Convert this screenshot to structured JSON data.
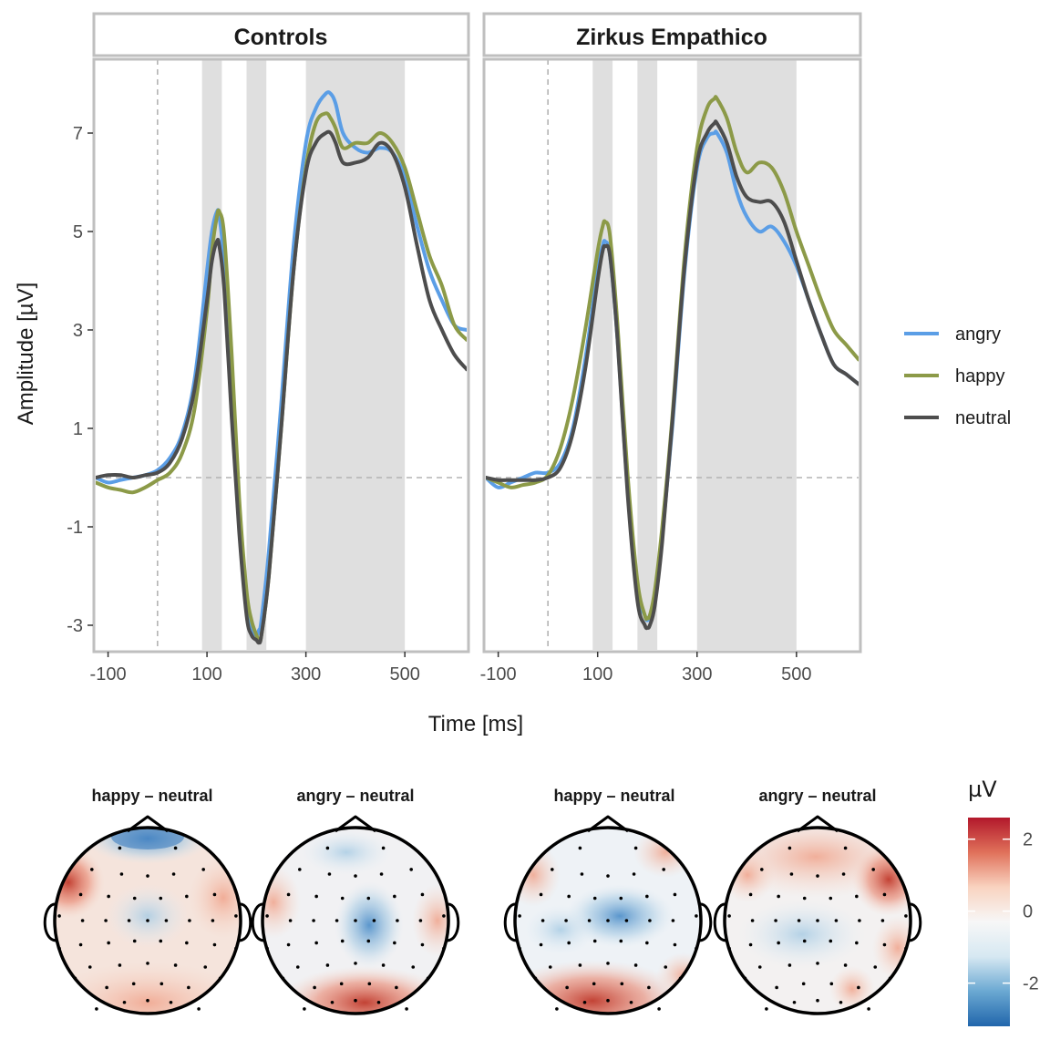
{
  "chart_data": [
    {
      "type": "line",
      "panels": [
        {
          "title": "Controls",
          "series": [
            {
              "name": "angry",
              "x": [
                -125,
                -100,
                -75,
                -50,
                -25,
                0,
                25,
                50,
                75,
                100,
                110,
                120,
                125,
                135,
                150,
                165,
                180,
                190,
                200,
                205,
                210,
                225,
                250,
                275,
                300,
                320,
                340,
                350,
                360,
                375,
                400,
                425,
                450,
                475,
                500,
                525,
                550,
                575,
                600,
                625
              ],
              "y": [
                0.0,
                -0.1,
                -0.05,
                0.0,
                0.05,
                0.15,
                0.4,
                0.9,
                2.0,
                4.2,
                5.0,
                5.4,
                5.3,
                4.3,
                1.5,
                -1.0,
                -2.7,
                -3.1,
                -3.2,
                -3.1,
                -2.9,
                -1.5,
                1.5,
                4.7,
                6.8,
                7.5,
                7.8,
                7.8,
                7.6,
                7.0,
                6.7,
                6.6,
                6.7,
                6.6,
                6.1,
                5.1,
                4.2,
                3.6,
                3.1,
                3.0
              ]
            },
            {
              "name": "happy",
              "x": [
                -125,
                -100,
                -75,
                -50,
                -25,
                0,
                25,
                50,
                75,
                100,
                110,
                120,
                125,
                135,
                150,
                165,
                180,
                190,
                200,
                205,
                210,
                225,
                250,
                275,
                300,
                320,
                340,
                350,
                360,
                375,
                400,
                425,
                450,
                475,
                500,
                525,
                550,
                575,
                600,
                625
              ],
              "y": [
                -0.1,
                -0.2,
                -0.25,
                -0.3,
                -0.2,
                -0.05,
                0.1,
                0.5,
                1.4,
                3.4,
                4.6,
                5.3,
                5.4,
                4.9,
                2.5,
                -0.4,
                -2.3,
                -2.9,
                -3.2,
                -3.3,
                -3.2,
                -2.0,
                1.0,
                4.2,
                6.3,
                7.2,
                7.4,
                7.3,
                7.1,
                6.7,
                6.8,
                6.8,
                7.0,
                6.8,
                6.3,
                5.4,
                4.5,
                3.9,
                3.1,
                2.8
              ]
            },
            {
              "name": "neutral",
              "x": [
                -125,
                -100,
                -75,
                -50,
                -25,
                0,
                25,
                50,
                75,
                100,
                110,
                120,
                125,
                135,
                150,
                165,
                180,
                190,
                200,
                205,
                210,
                225,
                250,
                275,
                300,
                320,
                340,
                350,
                360,
                375,
                400,
                425,
                450,
                475,
                500,
                525,
                550,
                575,
                600,
                625
              ],
              "y": [
                0.0,
                0.05,
                0.05,
                0.0,
                0.05,
                0.1,
                0.3,
                0.8,
                1.8,
                3.6,
                4.4,
                4.8,
                4.7,
                3.8,
                1.2,
                -1.1,
                -2.8,
                -3.2,
                -3.3,
                -3.35,
                -3.2,
                -2.0,
                1.0,
                4.2,
                6.2,
                6.8,
                7.0,
                7.0,
                6.8,
                6.4,
                6.4,
                6.5,
                6.8,
                6.6,
                5.9,
                4.7,
                3.6,
                3.0,
                2.5,
                2.2
              ]
            }
          ],
          "shaded_windows": [
            [
              90,
              130
            ],
            [
              180,
              220
            ],
            [
              300,
              500
            ]
          ]
        },
        {
          "title": "Zirkus Empathico",
          "series": [
            {
              "name": "angry",
              "x": [
                -125,
                -100,
                -75,
                -50,
                -25,
                0,
                25,
                50,
                75,
                100,
                110,
                115,
                125,
                140,
                160,
                180,
                195,
                200,
                205,
                215,
                230,
                250,
                275,
                300,
                320,
                335,
                340,
                360,
                380,
                400,
                425,
                450,
                475,
                500,
                525,
                550,
                575,
                600,
                625
              ],
              "y": [
                0.0,
                -0.2,
                -0.1,
                0.0,
                0.1,
                0.1,
                0.3,
                1.0,
                2.4,
                4.2,
                4.7,
                4.8,
                4.5,
                2.8,
                -0.2,
                -2.3,
                -2.8,
                -2.9,
                -2.8,
                -2.4,
                -1.2,
                1.0,
                4.2,
                6.3,
                6.9,
                7.0,
                7.0,
                6.6,
                5.8,
                5.3,
                5.0,
                5.1,
                4.8,
                4.3,
                3.6,
                2.9,
                2.3,
                2.1,
                1.9
              ]
            },
            {
              "name": "happy",
              "x": [
                -125,
                -100,
                -75,
                -50,
                -25,
                0,
                25,
                50,
                75,
                100,
                110,
                115,
                125,
                140,
                160,
                180,
                195,
                200,
                205,
                215,
                230,
                250,
                275,
                300,
                320,
                335,
                340,
                360,
                380,
                400,
                425,
                450,
                475,
                500,
                525,
                550,
                575,
                600,
                625
              ],
              "y": [
                0.0,
                -0.1,
                -0.2,
                -0.15,
                -0.1,
                0.05,
                0.6,
                1.6,
                3.0,
                4.6,
                5.1,
                5.2,
                4.9,
                3.1,
                0.1,
                -2.1,
                -2.8,
                -2.85,
                -2.8,
                -2.3,
                -1.0,
                1.2,
                4.5,
                6.7,
                7.5,
                7.7,
                7.7,
                7.3,
                6.6,
                6.2,
                6.4,
                6.3,
                5.8,
                5.0,
                4.3,
                3.6,
                3.0,
                2.7,
                2.4
              ]
            },
            {
              "name": "neutral",
              "x": [
                -125,
                -100,
                -75,
                -50,
                -25,
                0,
                25,
                50,
                75,
                100,
                110,
                115,
                125,
                140,
                160,
                180,
                195,
                200,
                205,
                215,
                230,
                250,
                275,
                300,
                320,
                335,
                340,
                360,
                380,
                400,
                425,
                450,
                475,
                500,
                525,
                550,
                575,
                600,
                625
              ],
              "y": [
                0.0,
                -0.05,
                -0.05,
                -0.05,
                -0.05,
                0.0,
                0.2,
                0.9,
                2.2,
                4.0,
                4.6,
                4.7,
                4.5,
                2.8,
                -0.3,
                -2.5,
                -3.0,
                -3.05,
                -3.0,
                -2.6,
                -1.3,
                1.1,
                4.3,
                6.4,
                7.0,
                7.2,
                7.2,
                6.8,
                6.1,
                5.7,
                5.6,
                5.6,
                5.2,
                4.4,
                3.6,
                2.9,
                2.3,
                2.1,
                1.9
              ]
            }
          ],
          "shaded_windows": [
            [
              90,
              130
            ],
            [
              180,
              220
            ],
            [
              300,
              500
            ]
          ]
        }
      ],
      "xlabel": "Time [ms]",
      "ylabel": "Amplitude [µV]",
      "xticks": [
        "-100",
        "100",
        "300",
        "500"
      ],
      "yticks": [
        "7",
        "5",
        "3",
        "1",
        "-1",
        "-3"
      ],
      "xlim": [
        -125,
        625
      ],
      "ylim": [
        -3.5,
        8.5
      ],
      "reference_lines": {
        "x": 0,
        "y": 0
      },
      "grid": false,
      "legend": {
        "placement": "right",
        "entries": [
          {
            "name": "angry",
            "color": "#5b9ee6"
          },
          {
            "name": "happy",
            "color": "#8c9a48"
          },
          {
            "name": "neutral",
            "color": "#4d4d4d"
          }
        ]
      },
      "colors": {
        "angry": "#5b9ee6",
        "happy": "#8c9a48",
        "neutral": "#4d4d4d",
        "strip_background": "#ffffff",
        "panel_border": "#bfbfbf",
        "shade": "#dfdfdf"
      }
    },
    {
      "type": "heatmap",
      "topomaps": [
        {
          "title": "happy – neutral",
          "group": "Controls"
        },
        {
          "title": "angry – neutral",
          "group": "Controls"
        },
        {
          "title": "happy – neutral",
          "group": "Zirkus Empathico"
        },
        {
          "title": "angry – neutral",
          "group": "Zirkus Empathico"
        }
      ],
      "colorbar": {
        "title": "µV",
        "ticks": [
          "2",
          "0",
          "-2"
        ],
        "range": [
          -3.2,
          2.6
        ],
        "colors": [
          "#2166ac",
          "#6aa8d2",
          "#d6e8f2",
          "#f7f7f7",
          "#f9d3c0",
          "#e0715a",
          "#b2182b"
        ]
      }
    }
  ]
}
